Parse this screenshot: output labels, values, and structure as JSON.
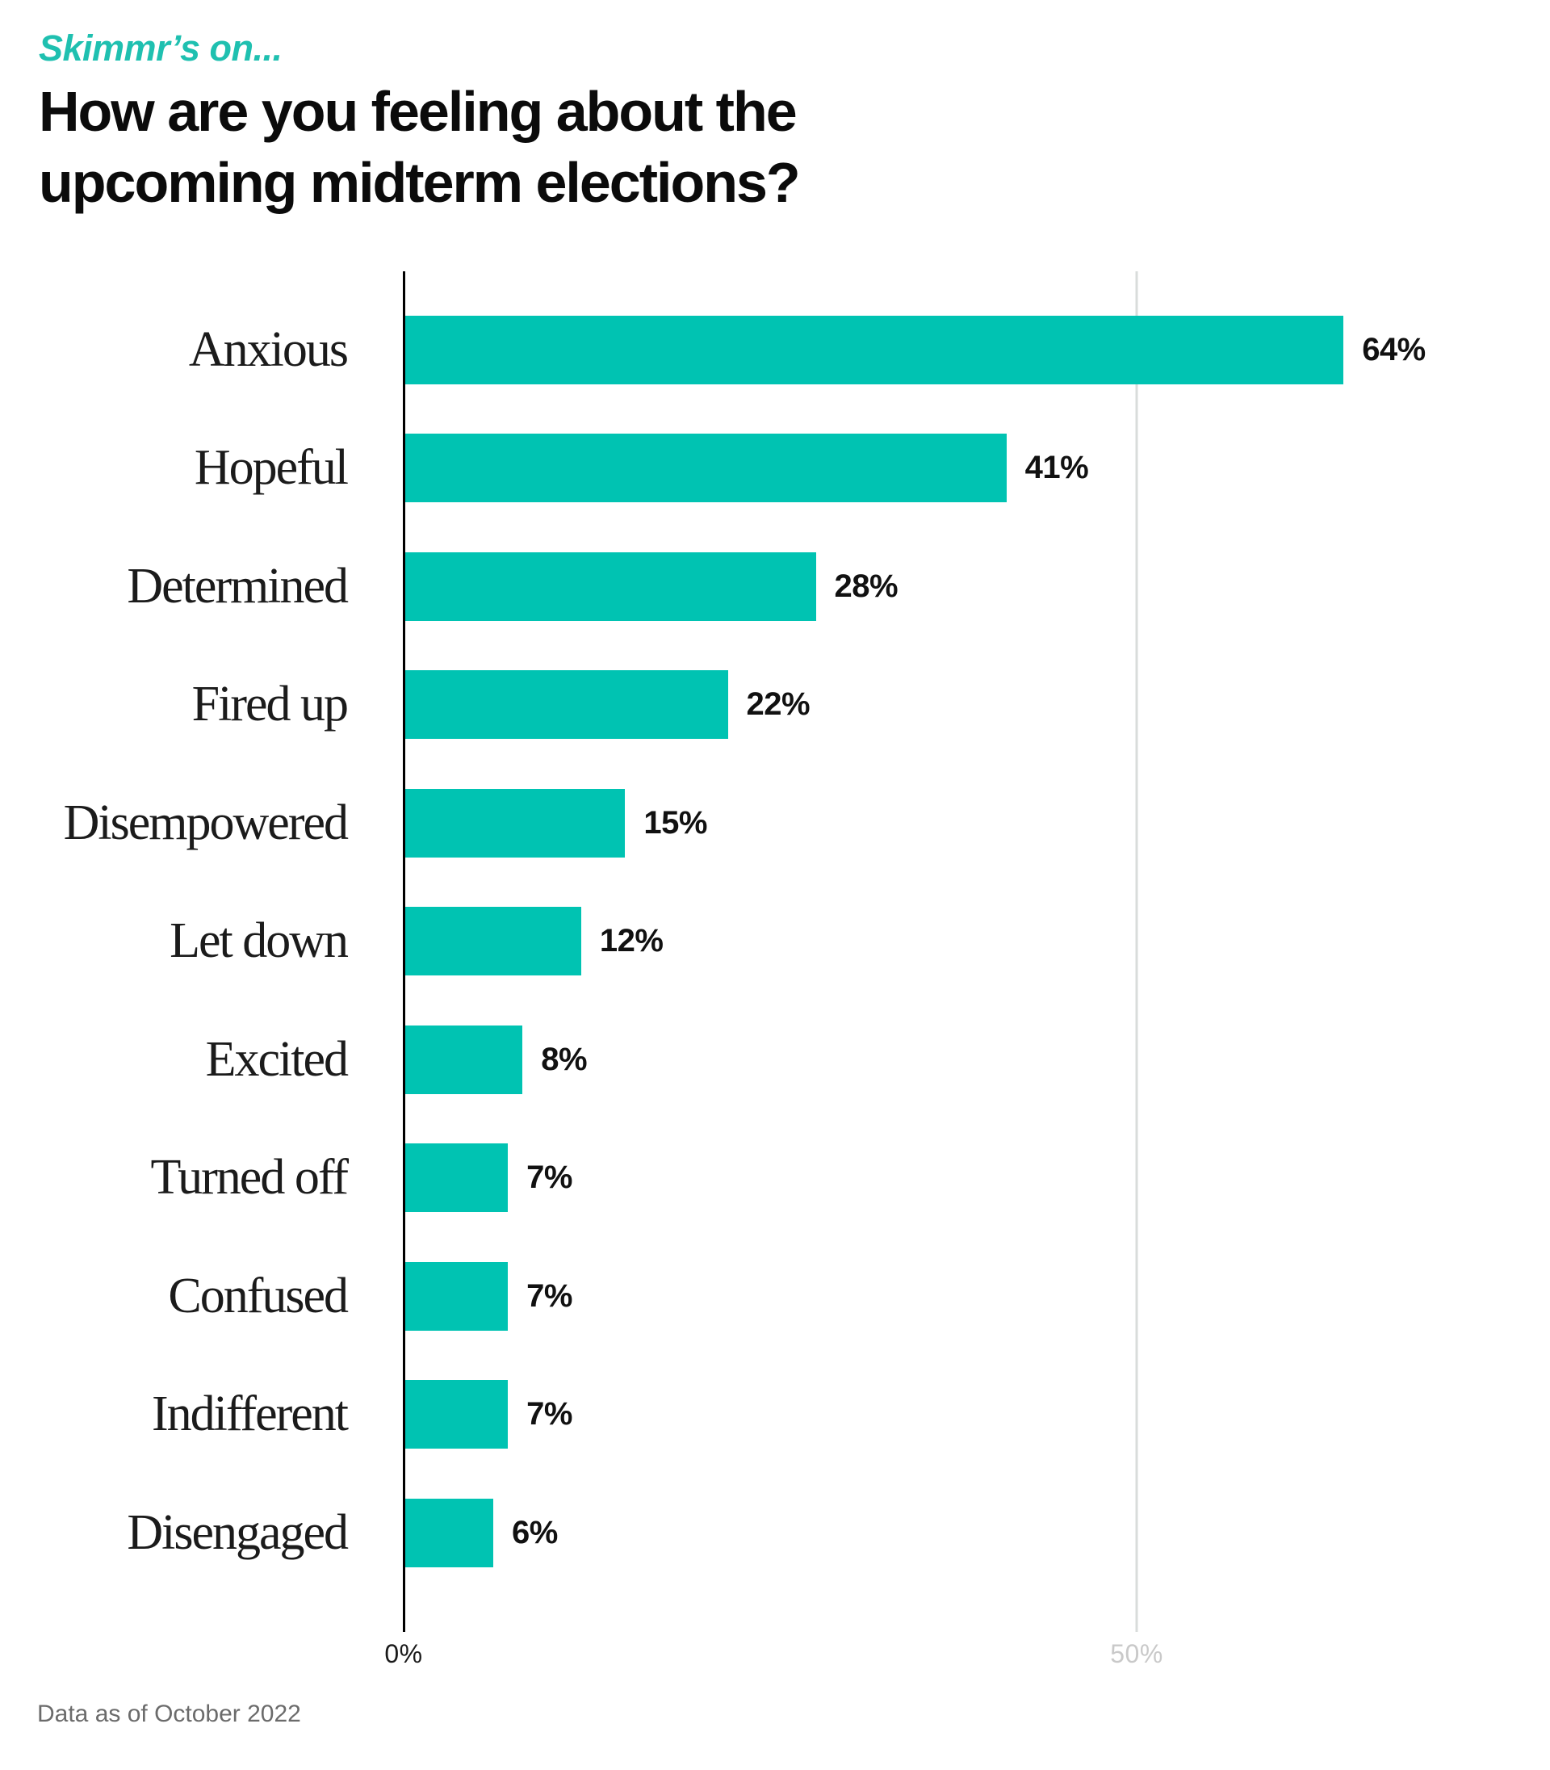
{
  "header": {
    "kicker": "Skimmr’s on...",
    "title_lines": [
      "How are you feeling about the",
      "upcoming midterm elections?"
    ]
  },
  "chart_data": {
    "type": "bar",
    "orientation": "horizontal",
    "title": "How are you feeling about the upcoming midterm elections?",
    "categories": [
      "Anxious",
      "Hopeful",
      "Determined",
      "Fired up",
      "Disempowered",
      "Let down",
      "Excited",
      "Turned off",
      "Confused",
      "Indifferent",
      "Disengaged"
    ],
    "values": [
      64,
      41,
      28,
      22,
      15,
      12,
      8,
      7,
      7,
      7,
      6
    ],
    "value_labels": [
      "64%",
      "41%",
      "28%",
      "22%",
      "15%",
      "12%",
      "8%",
      "7%",
      "7%",
      "7%",
      "6%"
    ],
    "xlabel": "",
    "ylabel": "",
    "xlim": [
      0,
      78
    ],
    "x_ticks": [
      {
        "label": "0%",
        "value": 0
      },
      {
        "label": "50%",
        "value": 50
      }
    ],
    "gridlines": [
      50
    ],
    "legend": null,
    "grid": "single vertical gridline at 50%",
    "bar_color": "#00C3B2"
  },
  "footer": {
    "note": "Data as of October 2022"
  },
  "colors": {
    "bar": "#00C3B2",
    "kicker": "#1FC0B0",
    "title": "#0b0b0b",
    "category_label": "#1b1b1b",
    "value_label": "#111111",
    "axis_line": "#000000",
    "gridline": "#d9dcdb",
    "tick_zero": "#1a1a1a",
    "tick_fifty": "#c9c9c9",
    "footer": "#6b6b6b"
  }
}
